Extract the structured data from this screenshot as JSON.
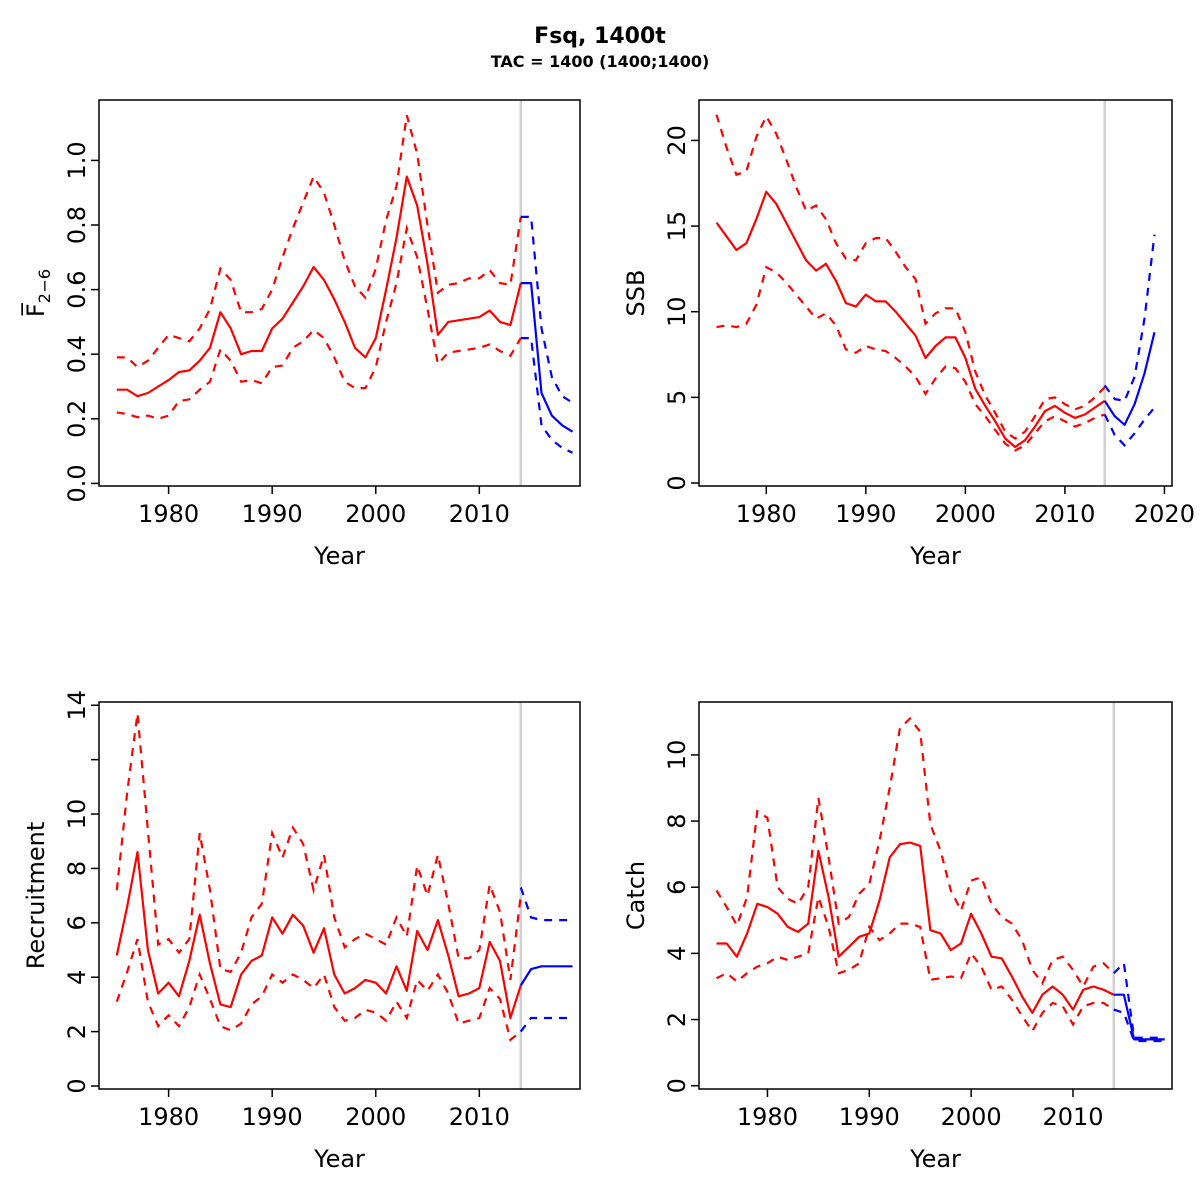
{
  "header": {
    "title": "Fsq, 1400t",
    "subtitle": "TAC = 1400 (1400;1400)"
  },
  "colors": {
    "history": "#ff0000",
    "forecast": "#0000ff",
    "divider": "#d0d0d0",
    "axis": "#000000",
    "background": "#ffffff"
  },
  "chart_data": {
    "type": "line",
    "title": "Fsq, 1400t",
    "subtitle": "TAC = 1400 (1400;1400)",
    "legend": "none",
    "grid": false,
    "forecast_divider_year": 2014,
    "years_history": [
      1975,
      1976,
      1977,
      1978,
      1979,
      1980,
      1981,
      1982,
      1983,
      1984,
      1985,
      1986,
      1987,
      1988,
      1989,
      1990,
      1991,
      1992,
      1993,
      1994,
      1995,
      1996,
      1997,
      1998,
      1999,
      2000,
      2001,
      2002,
      2003,
      2004,
      2005,
      2006,
      2007,
      2008,
      2009,
      2010,
      2011,
      2012,
      2013,
      2014
    ],
    "years_forecast": [
      2014,
      2015,
      2016,
      2017,
      2018,
      2019
    ],
    "panels": [
      {
        "id": "f",
        "ylabel": "F2-6",
        "ylabel_main": "F̅",
        "ylabel_sub": "2−6",
        "xlabel": "Year",
        "xlim": [
          1973.28,
          2019.72
        ],
        "ylim": [
          -0.008,
          1.187
        ],
        "xticks": [
          {
            "v": 1980,
            "label": "1980"
          },
          {
            "v": 1990,
            "label": "1990"
          },
          {
            "v": 2000,
            "label": "2000"
          },
          {
            "v": 2010,
            "label": "2010"
          }
        ],
        "yticks": [
          {
            "v": 0.0,
            "label": "0.0"
          },
          {
            "v": 0.2,
            "label": "0.2"
          },
          {
            "v": 0.4,
            "label": "0.4"
          },
          {
            "v": 0.6,
            "label": "0.6"
          },
          {
            "v": 0.8,
            "label": "0.8"
          },
          {
            "v": 1.0,
            "label": "1.0"
          }
        ],
        "series": {
          "history_median": [
            0.29,
            0.29,
            0.27,
            0.28,
            0.3,
            0.32,
            0.345,
            0.35,
            0.38,
            0.42,
            0.53,
            0.48,
            0.4,
            0.41,
            0.41,
            0.48,
            0.51,
            0.56,
            0.61,
            0.67,
            0.63,
            0.57,
            0.5,
            0.42,
            0.39,
            0.45,
            0.6,
            0.76,
            0.95,
            0.86,
            0.68,
            0.46,
            0.5,
            0.505,
            0.51,
            0.515,
            0.535,
            0.5,
            0.49,
            0.62
          ],
          "history_upper": [
            0.39,
            0.39,
            0.36,
            0.38,
            0.42,
            0.46,
            0.45,
            0.44,
            0.48,
            0.54,
            0.665,
            0.63,
            0.53,
            0.53,
            0.54,
            0.6,
            0.7,
            0.79,
            0.87,
            0.95,
            0.9,
            0.8,
            0.69,
            0.61,
            0.575,
            0.665,
            0.815,
            0.92,
            1.14,
            1.02,
            0.8,
            0.59,
            0.615,
            0.62,
            0.635,
            0.635,
            0.66,
            0.62,
            0.615,
            0.825
          ],
          "history_lower": [
            0.22,
            0.215,
            0.205,
            0.21,
            0.2,
            0.21,
            0.255,
            0.26,
            0.29,
            0.315,
            0.415,
            0.38,
            0.315,
            0.32,
            0.31,
            0.36,
            0.365,
            0.42,
            0.44,
            0.475,
            0.45,
            0.39,
            0.315,
            0.295,
            0.295,
            0.36,
            0.5,
            0.62,
            0.79,
            0.7,
            0.54,
            0.37,
            0.405,
            0.41,
            0.415,
            0.42,
            0.43,
            0.41,
            0.395,
            0.45
          ],
          "forecast_median": [
            0.62,
            0.62,
            0.28,
            0.21,
            0.18,
            0.16
          ],
          "forecast_upper": [
            0.825,
            0.825,
            0.48,
            0.33,
            0.27,
            0.25
          ],
          "forecast_lower": [
            0.45,
            0.45,
            0.18,
            0.135,
            0.11,
            0.095
          ]
        }
      },
      {
        "id": "ssb",
        "ylabel": "SSB",
        "xlabel": "Year",
        "xlim": [
          1973.24,
          2020.76
        ],
        "ylim": [
          -0.175,
          22.36
        ],
        "xticks": [
          {
            "v": 1980,
            "label": "1980"
          },
          {
            "v": 1990,
            "label": "1990"
          },
          {
            "v": 2000,
            "label": "2000"
          },
          {
            "v": 2010,
            "label": "2010"
          },
          {
            "v": 2020,
            "label": "2020"
          }
        ],
        "yticks": [
          {
            "v": 0,
            "label": "0"
          },
          {
            "v": 5,
            "label": "5"
          },
          {
            "v": 10,
            "label": "10"
          },
          {
            "v": 15,
            "label": "15"
          },
          {
            "v": 20,
            "label": "20"
          }
        ],
        "series": {
          "history_median": [
            15.2,
            14.4,
            13.6,
            14.0,
            15.4,
            17.0,
            16.3,
            15.2,
            14.1,
            13.0,
            12.4,
            12.8,
            11.8,
            10.5,
            10.3,
            11.0,
            10.6,
            10.6,
            10.0,
            9.3,
            8.6,
            7.3,
            8.0,
            8.5,
            8.5,
            7.3,
            5.5,
            4.5,
            3.6,
            2.6,
            2.1,
            2.5,
            3.3,
            4.2,
            4.5,
            4.1,
            3.8,
            4.0,
            4.4,
            4.8
          ],
          "history_upper": [
            21.5,
            19.6,
            18.0,
            18.2,
            20.2,
            21.4,
            20.4,
            18.9,
            17.3,
            15.9,
            16.2,
            15.4,
            14.0,
            13.1,
            13.0,
            14.0,
            14.3,
            14.3,
            13.5,
            12.6,
            11.9,
            9.3,
            9.9,
            10.2,
            10.2,
            8.8,
            6.5,
            5.1,
            4.1,
            3.0,
            2.6,
            3.0,
            3.9,
            4.9,
            5.0,
            4.6,
            4.3,
            4.5,
            5.0,
            5.6
          ],
          "history_lower": [
            9.1,
            9.2,
            9.1,
            9.3,
            10.4,
            12.6,
            12.3,
            11.7,
            11.0,
            10.3,
            9.6,
            9.9,
            9.2,
            7.8,
            7.6,
            8.0,
            7.8,
            7.7,
            7.3,
            6.8,
            6.2,
            5.2,
            6.1,
            6.8,
            6.7,
            5.9,
            4.6,
            3.9,
            3.1,
            2.3,
            1.9,
            2.2,
            2.9,
            3.6,
            3.9,
            3.6,
            3.3,
            3.5,
            3.8,
            4.0
          ],
          "forecast_median": [
            4.8,
            3.9,
            3.4,
            4.6,
            6.4,
            8.8
          ],
          "forecast_upper": [
            5.7,
            4.9,
            4.8,
            6.2,
            9.6,
            14.5
          ],
          "forecast_lower": [
            4.0,
            2.8,
            2.2,
            2.9,
            3.7,
            4.4
          ]
        }
      },
      {
        "id": "recruitment",
        "ylabel": "Recruitment",
        "xlabel": "Year",
        "xlim": [
          1973.28,
          2019.72
        ],
        "ylim": [
          -0.11,
          14.12
        ],
        "xticks": [
          {
            "v": 1980,
            "label": "1980"
          },
          {
            "v": 1990,
            "label": "1990"
          },
          {
            "v": 2000,
            "label": "2000"
          },
          {
            "v": 2010,
            "label": "2010"
          }
        ],
        "yticks": [
          {
            "v": 0,
            "label": "0"
          },
          {
            "v": 2,
            "label": "2"
          },
          {
            "v": 4,
            "label": "4"
          },
          {
            "v": 6,
            "label": "6"
          },
          {
            "v": 8,
            "label": "8"
          },
          {
            "v": 10,
            "label": "10"
          },
          {
            "v": 12,
            "label": ""
          },
          {
            "v": 14,
            "label": "14"
          }
        ],
        "series": {
          "history_median": [
            4.8,
            6.6,
            8.6,
            5.0,
            3.4,
            3.8,
            3.3,
            4.6,
            6.3,
            4.5,
            3.0,
            2.9,
            4.1,
            4.6,
            4.8,
            6.2,
            5.6,
            6.3,
            5.9,
            4.9,
            5.8,
            4.1,
            3.4,
            3.6,
            3.9,
            3.8,
            3.4,
            4.4,
            3.5,
            5.7,
            5.0,
            6.1,
            4.8,
            3.3,
            3.4,
            3.6,
            5.3,
            4.6,
            2.5,
            3.7
          ],
          "history_upper": [
            7.2,
            10.8,
            13.7,
            9.4,
            5.2,
            5.4,
            4.9,
            5.4,
            9.3,
            7.2,
            4.3,
            4.2,
            4.9,
            6.2,
            6.7,
            9.3,
            8.4,
            9.5,
            8.9,
            7.2,
            8.5,
            6.2,
            5.1,
            5.4,
            5.6,
            5.4,
            5.2,
            6.2,
            5.5,
            8.1,
            7.0,
            8.5,
            6.7,
            4.7,
            4.7,
            5.0,
            7.4,
            6.4,
            3.9,
            7.0
          ],
          "history_lower": [
            3.1,
            4.2,
            5.4,
            3.1,
            2.2,
            2.6,
            2.2,
            2.9,
            4.1,
            3.2,
            2.2,
            2.05,
            2.3,
            3.0,
            3.3,
            4.1,
            3.8,
            4.1,
            3.9,
            3.6,
            4.1,
            2.9,
            2.4,
            2.5,
            2.8,
            2.7,
            2.4,
            3.1,
            2.5,
            3.9,
            3.5,
            4.1,
            3.4,
            2.3,
            2.4,
            2.5,
            3.6,
            3.2,
            1.7,
            2.0
          ],
          "forecast_median": [
            3.7,
            4.3,
            4.4,
            4.4,
            4.4,
            4.4
          ],
          "forecast_upper": [
            7.3,
            6.2,
            6.1,
            6.1,
            6.1,
            6.1
          ],
          "forecast_lower": [
            2.0,
            2.5,
            2.5,
            2.5,
            2.5,
            2.5
          ]
        }
      },
      {
        "id": "catch",
        "ylabel": "Catch",
        "xlabel": "Year",
        "xlim": [
          1973.28,
          2019.72
        ],
        "ylim": [
          -0.1,
          11.6
        ],
        "xticks": [
          {
            "v": 1980,
            "label": "1980"
          },
          {
            "v": 1990,
            "label": "1990"
          },
          {
            "v": 2000,
            "label": "2000"
          },
          {
            "v": 2010,
            "label": "2010"
          }
        ],
        "yticks": [
          {
            "v": 0,
            "label": "0"
          },
          {
            "v": 2,
            "label": "2"
          },
          {
            "v": 4,
            "label": "4"
          },
          {
            "v": 6,
            "label": "6"
          },
          {
            "v": 8,
            "label": "8"
          },
          {
            "v": 10,
            "label": "10"
          }
        ],
        "series": {
          "history_median": [
            4.3,
            4.3,
            3.9,
            4.6,
            5.5,
            5.4,
            5.2,
            4.8,
            4.65,
            4.9,
            7.1,
            5.7,
            3.9,
            4.2,
            4.5,
            4.6,
            5.6,
            6.9,
            7.3,
            7.35,
            7.25,
            4.7,
            4.6,
            4.1,
            4.3,
            5.2,
            4.6,
            3.9,
            3.85,
            3.3,
            2.7,
            2.2,
            2.75,
            3.0,
            2.75,
            2.3,
            2.9,
            3.0,
            2.9,
            2.75
          ],
          "history_upper": [
            5.9,
            5.4,
            4.85,
            5.7,
            8.3,
            8.1,
            6.0,
            5.65,
            5.5,
            6.0,
            8.7,
            6.9,
            4.9,
            5.1,
            5.8,
            6.1,
            7.4,
            9.0,
            10.8,
            11.1,
            10.7,
            7.9,
            7.1,
            5.9,
            5.3,
            6.2,
            6.3,
            5.5,
            5.1,
            4.9,
            4.4,
            3.5,
            3.1,
            3.8,
            3.9,
            3.5,
            3.0,
            3.6,
            3.7,
            3.4
          ],
          "history_lower": [
            3.25,
            3.4,
            3.15,
            3.4,
            3.6,
            3.7,
            3.9,
            3.8,
            3.9,
            4.0,
            5.7,
            4.8,
            3.4,
            3.5,
            3.7,
            4.8,
            4.4,
            4.6,
            4.9,
            4.9,
            4.8,
            3.2,
            3.25,
            3.3,
            3.25,
            4.0,
            3.6,
            2.9,
            3.0,
            2.6,
            2.1,
            1.65,
            2.2,
            2.5,
            2.4,
            1.85,
            2.4,
            2.5,
            2.5,
            2.3
          ],
          "forecast_median": [
            2.75,
            2.75,
            1.4,
            1.4,
            1.4,
            1.4
          ],
          "forecast_upper": [
            3.4,
            3.7,
            1.45,
            1.45,
            1.45,
            1.45
          ],
          "forecast_lower": [
            2.3,
            2.2,
            1.35,
            1.35,
            1.35,
            1.35
          ]
        }
      }
    ]
  }
}
